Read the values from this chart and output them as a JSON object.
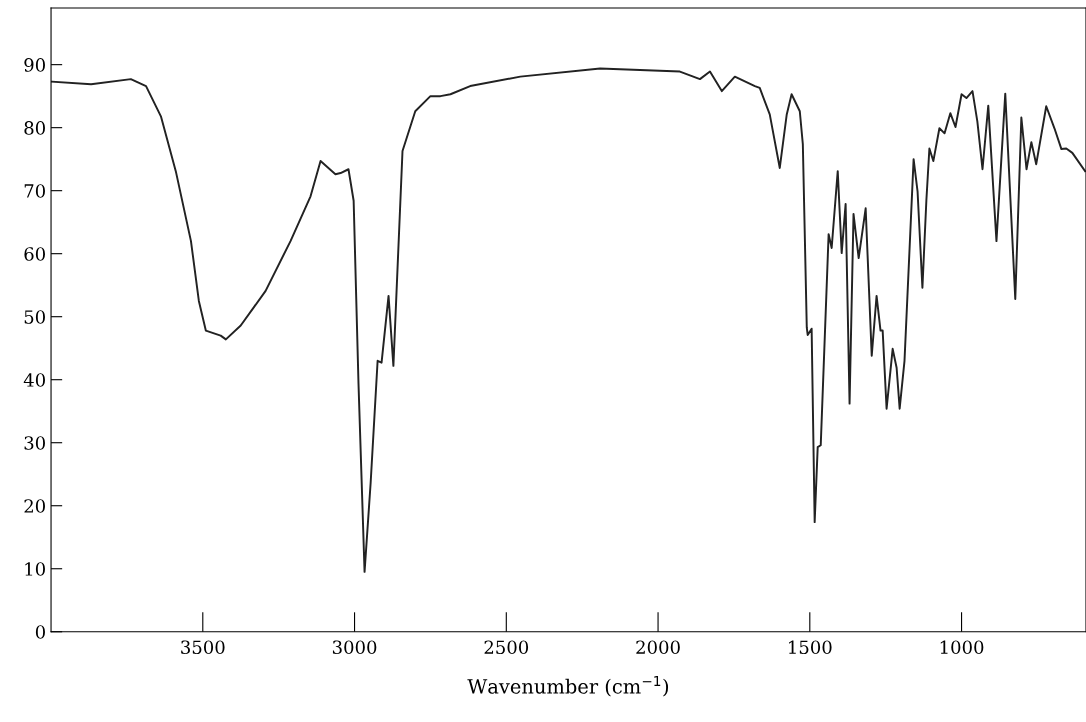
{
  "chart_data": {
    "type": "line",
    "xlabel": "Wavenumber (cm$^{−1}$)",
    "xlim": [
      4000,
      590
    ],
    "ylim": [
      0,
      99
    ],
    "xticks": [
      3500,
      3000,
      2500,
      2000,
      1500,
      1000
    ],
    "yticks": [
      0,
      10,
      20,
      30,
      40,
      50,
      60,
      70,
      80,
      90
    ],
    "grid": false,
    "legend": false,
    "marker": "none",
    "line_style": "solid",
    "x": [
      3997,
      3868,
      3737,
      3687,
      3638,
      3589,
      3539,
      3513,
      3490,
      3441,
      3424,
      3375,
      3293,
      3211,
      3145,
      3112,
      3063,
      3046,
      3020,
      3003,
      2987,
      2967,
      2947,
      2924,
      2911,
      2888,
      2872,
      2842,
      2800,
      2750,
      2717,
      2684,
      2619,
      2454,
      2191,
      1928,
      1862,
      1829,
      1790,
      1747,
      1681,
      1665,
      1632,
      1599,
      1576,
      1560,
      1533,
      1523,
      1510,
      1507,
      1494,
      1484,
      1474,
      1464,
      1438,
      1428,
      1408,
      1395,
      1382,
      1369,
      1356,
      1339,
      1316,
      1296,
      1280,
      1267,
      1260,
      1247,
      1227,
      1214,
      1204,
      1188,
      1158,
      1145,
      1129,
      1116,
      1106,
      1093,
      1073,
      1056,
      1037,
      1020,
      1000,
      984,
      964,
      948,
      931,
      912,
      885,
      856,
      823,
      803,
      786,
      770,
      754,
      721,
      694,
      671,
      655,
      635,
      593
    ],
    "series": [
      {
        "color": "#222222",
        "values": [
          87.3,
          86.9,
          87.7,
          86.6,
          81.8,
          73.1,
          62.0,
          52.5,
          47.8,
          47.0,
          46.4,
          48.6,
          54.1,
          62.0,
          69.1,
          74.7,
          72.6,
          72.8,
          73.4,
          68.4,
          39.4,
          9.5,
          23.6,
          43.0,
          42.7,
          53.3,
          42.2,
          76.3,
          82.6,
          85,
          85,
          85.3,
          86.6,
          88.1,
          89.4,
          88.9,
          87.7,
          88.9,
          85.8,
          88.1,
          86.6,
          86.3,
          82.1,
          73.6,
          82.1,
          85.3,
          82.6,
          77.4,
          48.3,
          47.1,
          48.1,
          17.4,
          29.3,
          29.6,
          63.1,
          60.9,
          73.1,
          60.1,
          67.9,
          36.2,
          66.3,
          59.3,
          67.2,
          43.8,
          53.3,
          47.8,
          47.8,
          35.4,
          44.9,
          41.9,
          35.4,
          43.0,
          75.0,
          69.9,
          54.6,
          68.4,
          76.7,
          74.7,
          79.9,
          79.1,
          82.3,
          80.1,
          85.3,
          84.7,
          85.8,
          81.0,
          73.4,
          83.5,
          62.0,
          85.4,
          52.8,
          81.6,
          73.4,
          77.7,
          74.2,
          83.4,
          79.9,
          76.6,
          76.7,
          76.0,
          73.1
        ]
      }
    ]
  }
}
